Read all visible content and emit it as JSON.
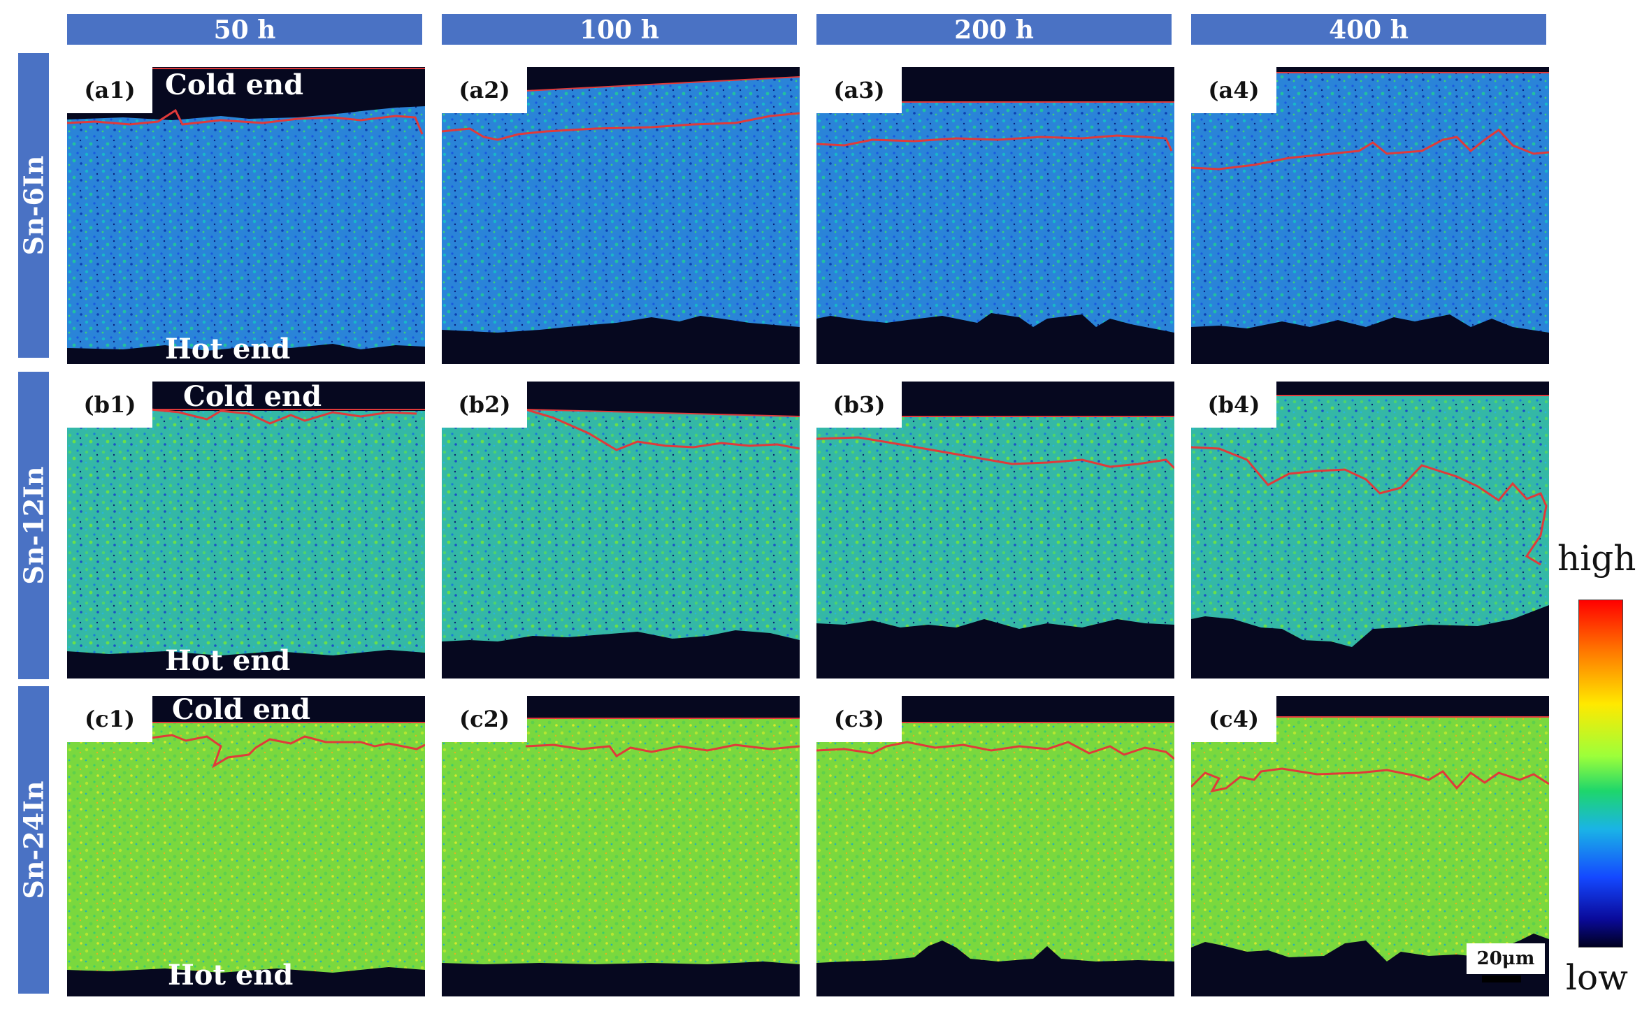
{
  "column_headers": [
    "50 h",
    "100 h",
    "200 h",
    "400 h"
  ],
  "row_headers": [
    "Sn-6In",
    "Sn-12In",
    "Sn-24In"
  ],
  "panel_labels": {
    "a": [
      "(a1)",
      "(a2)",
      "(a3)",
      "(a4)"
    ],
    "b": [
      "(b1)",
      "(b2)",
      "(b3)",
      "(b4)"
    ],
    "c": [
      "(c1)",
      "(c2)",
      "(c3)",
      "(c4)"
    ]
  },
  "end_labels": {
    "cold": "Cold end",
    "hot": "Hot end"
  },
  "colorbar": {
    "high": "high",
    "low": "low"
  },
  "scale_bar": "20μm",
  "colors": {
    "header_bg": "#4a72c4",
    "background_dark": "#06081f",
    "boundary_line": "#e03a3a",
    "row_a_map": "#2a84d8",
    "row_b_map": "#34b8a6",
    "row_c_map": "#7ad83e"
  }
}
